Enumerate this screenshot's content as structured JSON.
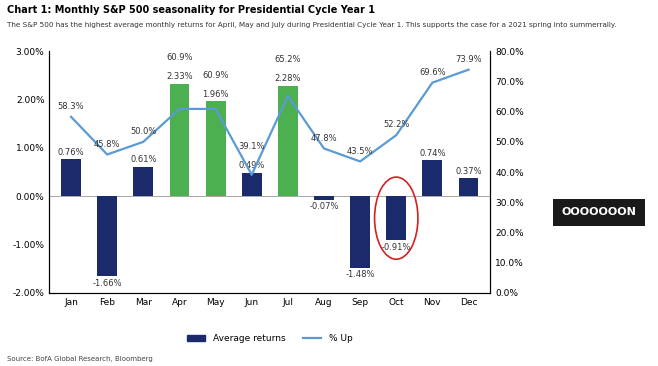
{
  "chart_data": {
    "type": "bar",
    "title": "Chart 1: Monthly S&P 500 seasonality for Presidential Cycle Year 1",
    "subtitle": "The S&P 500 has the highest average monthly returns for April, May and July during Presidential Cycle Year 1. This supports the case for a 2021 spring into summerrally.",
    "source": "Source: BofA Global Research, Bloomberg",
    "annotations": [
      "OOOOOOON"
    ],
    "categories": [
      "Jan",
      "Feb",
      "Mar",
      "Apr",
      "May",
      "Jun",
      "Jul",
      "Aug",
      "Sep",
      "Oct",
      "Nov",
      "Dec"
    ],
    "series": [
      {
        "name": "Average returns",
        "type": "bar",
        "colors": [
          "#1b2a6b",
          "#1b2a6b",
          "#1b2a6b",
          "#4caf50",
          "#4caf50",
          "#1b2a6b",
          "#4caf50",
          "#1b2a6b",
          "#1b2a6b",
          "#1b2a6b",
          "#1b2a6b",
          "#1b2a6b"
        ],
        "values": [
          0.76,
          -1.66,
          0.61,
          2.33,
          1.96,
          0.49,
          2.28,
          -0.07,
          -1.48,
          -0.91,
          0.74,
          0.37
        ],
        "value_labels": [
          "0.76%",
          "-1.66%",
          "0.61%",
          "2.33%",
          "1.96%",
          "0.49%",
          "2.28%",
          "-0.07%",
          "-1.48%",
          "-0.91%",
          "0.74%",
          "0.37%"
        ]
      },
      {
        "name": "% Up",
        "type": "line",
        "axis": "y2",
        "color": "#5b9bd5",
        "values": [
          58.3,
          45.8,
          50.0,
          60.9,
          60.9,
          39.1,
          65.2,
          47.8,
          43.5,
          52.2,
          69.6,
          73.9
        ],
        "value_labels": [
          "58.3%",
          "45.8%",
          "50.0%",
          "60.9%",
          "60.9%",
          "39.1%",
          "65.2%",
          "47.8%",
          "43.5%",
          "52.2%",
          "69.6%",
          "73.9%"
        ]
      }
    ],
    "ylim": [
      -2,
      3
    ],
    "yticks": [
      {
        "value": -2,
        "label": "-2.00%"
      },
      {
        "value": -1,
        "label": "-1.00%"
      },
      {
        "value": 0,
        "label": "0.00%"
      },
      {
        "value": 1,
        "label": "1.00%"
      },
      {
        "value": 2,
        "label": "2.00%"
      },
      {
        "value": 3,
        "label": "3.00%"
      }
    ],
    "y2lim": [
      0,
      80
    ],
    "y2ticks": [
      {
        "value": 0,
        "label": "0.0%"
      },
      {
        "value": 10,
        "label": "10.0%"
      },
      {
        "value": 20,
        "label": "20.0%"
      },
      {
        "value": 30,
        "label": "30.0%"
      },
      {
        "value": 40,
        "label": "40.0%"
      },
      {
        "value": 50,
        "label": "50.0%"
      },
      {
        "value": 60,
        "label": "60.0%"
      },
      {
        "value": 70,
        "label": "70.0%"
      },
      {
        "value": 80,
        "label": "80.0%"
      }
    ],
    "grid": false,
    "legend": "lower center",
    "data_labels": true
  }
}
